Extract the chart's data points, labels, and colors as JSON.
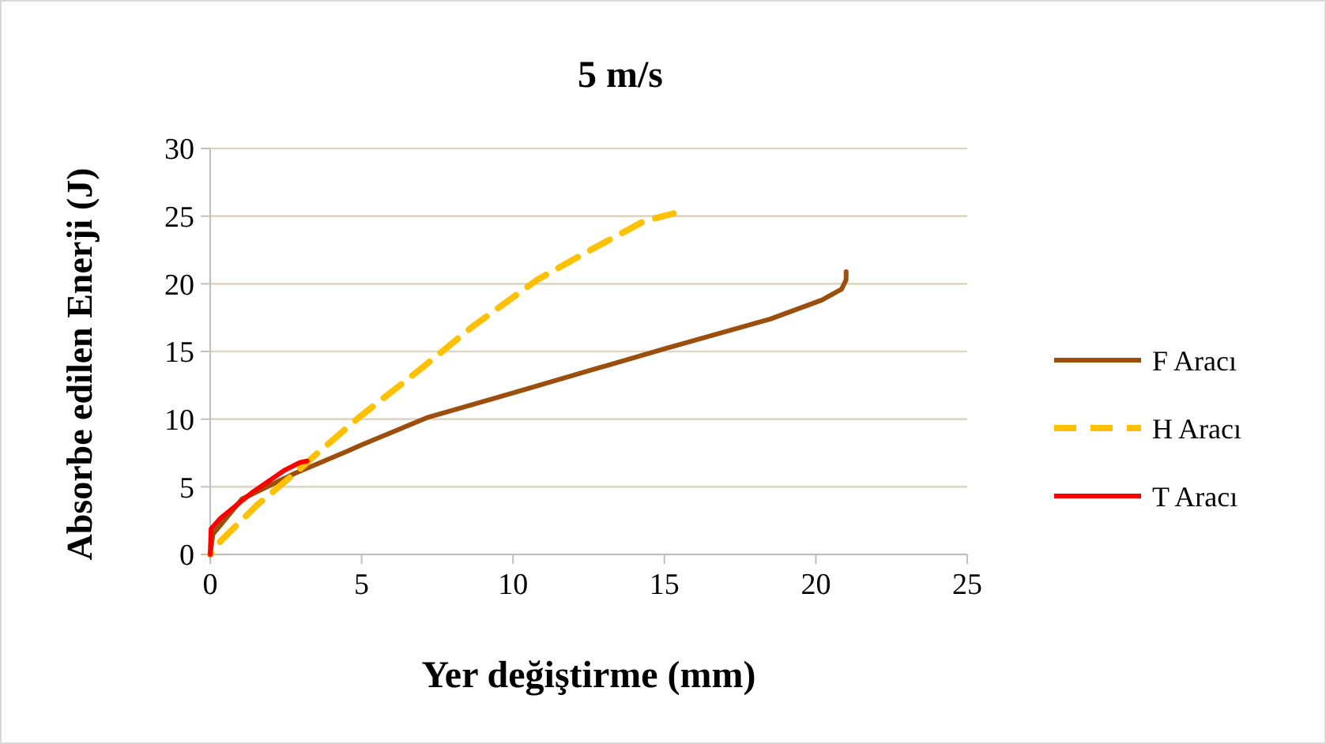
{
  "chart_data": {
    "type": "line",
    "title": "5 m/s",
    "xlabel": "Yer değiştirme (mm)",
    "ylabel": "Absorbe edilen Enerji (J)",
    "xlim": [
      0,
      25
    ],
    "xticks": [
      0,
      5,
      10,
      15,
      20,
      25
    ],
    "ylim": [
      0,
      30
    ],
    "yticks": [
      0,
      5,
      10,
      15,
      20,
      25,
      30
    ],
    "grid": "y",
    "legend": "right",
    "series": [
      {
        "name": "F Aracı",
        "color": "#9c4f0c",
        "line_style": "solid",
        "x": [
          0,
          0.09,
          1.05,
          2.8,
          4.5,
          5,
          7.15,
          10.1,
          15.0,
          18.5,
          20.2,
          20.85,
          21.0,
          21.0
        ],
        "values": [
          0,
          1.5,
          4.1,
          6.0,
          7.6,
          8.1,
          10.1,
          12.0,
          15.2,
          17.4,
          18.8,
          19.6,
          20.3,
          20.9
        ]
      },
      {
        "name": "H Aracı",
        "color": "#ffc000",
        "line_style": "dashed",
        "x": [
          0,
          0.35,
          1.57,
          2.8,
          3.5,
          4.9,
          7.0,
          8.7,
          10.8,
          12.4,
          14.3,
          15.3
        ],
        "values": [
          0,
          1,
          3.7,
          6.0,
          7.4,
          10.1,
          13.8,
          16.9,
          20.3,
          22.3,
          24.6,
          25.2
        ]
      },
      {
        "name": "T Aracı",
        "color": "#ff0000",
        "line_style": "solid",
        "x": [
          0,
          0.03,
          0.35,
          1.4,
          2.44,
          2.97,
          3.2
        ],
        "values": [
          0,
          1.9,
          2.7,
          4.6,
          6.2,
          6.8,
          6.9
        ]
      }
    ]
  }
}
